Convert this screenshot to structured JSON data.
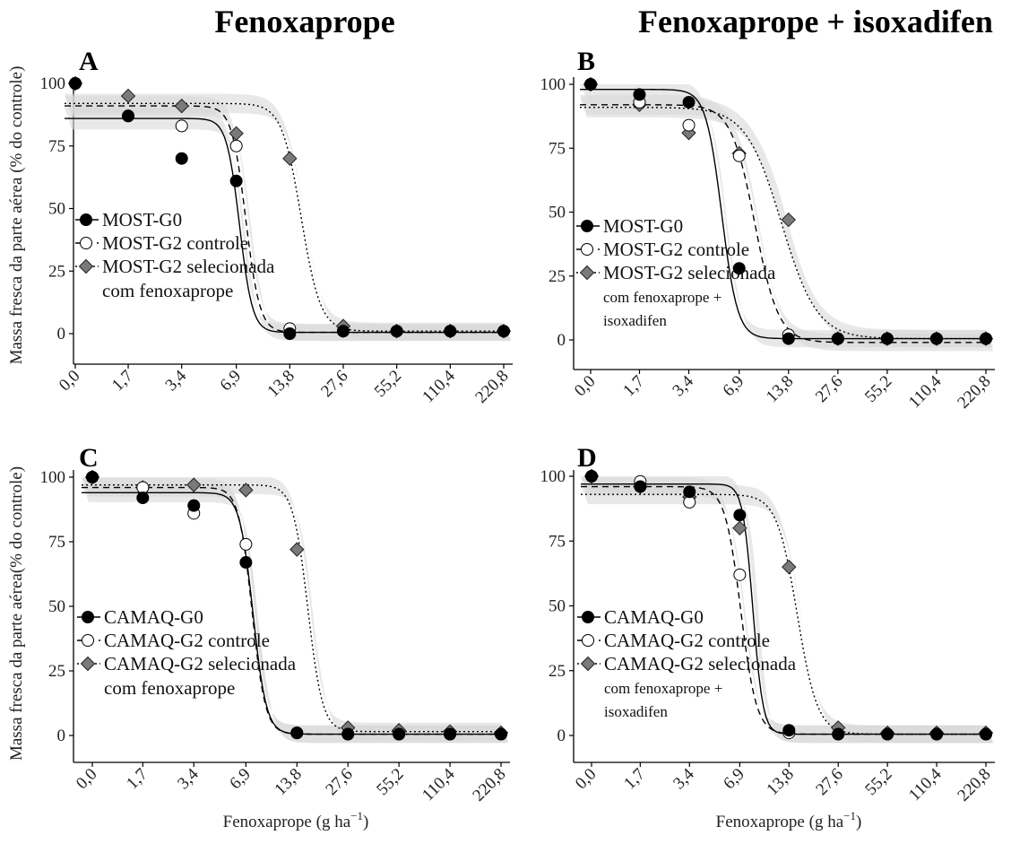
{
  "titles": {
    "left": "Fenoxaprope",
    "right": "Fenoxaprope + isoxadifen"
  },
  "y_axis_labels": {
    "top": "Massa fresca da parte aérea (% do controle)",
    "bottom": "Massa fresca da parte aérea(% do controle)"
  },
  "x_axis_label": {
    "main": "Fenoxaprope (g  ha",
    "sup": "−1",
    "close": ")"
  },
  "chart_data": [
    {
      "panel": "A",
      "type": "scatter",
      "x_ticks": [
        "0,0",
        "1,7",
        "3,4",
        "6,9",
        "13,8",
        "27,6",
        "55,2",
        "110,4",
        "220,8"
      ],
      "x": [
        0.0,
        1.7,
        3.4,
        6.9,
        13.8,
        27.6,
        55.2,
        110.4,
        220.8
      ],
      "y_ticks": [
        "0",
        "25",
        "50",
        "75",
        "100"
      ],
      "ylim": [
        0,
        100
      ],
      "grid": false,
      "legend_placement": "middle-left",
      "series": [
        {
          "name": "MOST-G0",
          "marker": "filled-circle",
          "line": "solid",
          "values": [
            100,
            87,
            70,
            61,
            0,
            1,
            1,
            1,
            1
          ],
          "fit": {
            "upper": 86,
            "lower": 0.5,
            "ed50": 7.2,
            "slope": 12
          }
        },
        {
          "name": "MOST-G2 controle",
          "marker": "open-circle",
          "line": "dashed",
          "values": [
            100,
            87,
            83,
            75,
            2,
            1,
            1,
            1,
            1
          ],
          "fit": {
            "upper": 91,
            "lower": 0.5,
            "ed50": 7.8,
            "slope": 11
          }
        },
        {
          "name": "MOST-G2 selecionada",
          "name_line2": "com fenoxaprope",
          "marker": "grey-diamond",
          "line": "dotted",
          "values": [
            100,
            95,
            91,
            80,
            70,
            3,
            1,
            1,
            1
          ],
          "fit": {
            "upper": 92,
            "lower": 1,
            "ed50": 16,
            "slope": 8
          }
        }
      ]
    },
    {
      "panel": "B",
      "type": "scatter",
      "x_ticks": [
        "0,0",
        "1,7",
        "3,4",
        "6,9",
        "13,8",
        "27,6",
        "55,2",
        "110,4",
        "220,8"
      ],
      "x": [
        0.0,
        1.7,
        3.4,
        6.9,
        13.8,
        27.6,
        55.2,
        110.4,
        220.8
      ],
      "y_ticks": [
        "0",
        "25",
        "50",
        "75",
        "100"
      ],
      "ylim": [
        0,
        100
      ],
      "grid": false,
      "legend_placement": "middle-left",
      "series": [
        {
          "name": "MOST-G0",
          "marker": "filled-circle",
          "line": "solid",
          "values": [
            100,
            96,
            93,
            28,
            0.5,
            0.5,
            0.5,
            0.5,
            0.5
          ],
          "fit": {
            "upper": 98,
            "lower": 0.5,
            "ed50": 5.4,
            "slope": 9
          }
        },
        {
          "name": "MOST-G2 controle",
          "marker": "open-circle",
          "line": "dashed",
          "values": [
            100,
            93,
            84,
            72,
            2,
            0.5,
            0.5,
            0.5,
            0.5
          ],
          "fit": {
            "upper": 92,
            "lower": -1,
            "ed50": 8.6,
            "slope": 6
          }
        },
        {
          "name": "MOST-G2 selecionada",
          "name_line2": "com fenoxaprope +",
          "name_line3": "isoxadifen",
          "marker": "grey-diamond",
          "line": "dotted",
          "values": [
            100,
            92,
            81,
            73,
            47,
            0.5,
            0.5,
            0.5,
            0.5
          ],
          "fit": {
            "upper": 91,
            "lower": 0.5,
            "ed50": 12.5,
            "slope": 4
          }
        }
      ]
    },
    {
      "panel": "C",
      "type": "scatter",
      "x_ticks": [
        "0,0",
        "1,7",
        "3,4",
        "6,9",
        "13,8",
        "27,6",
        "55,2",
        "110,4",
        "220,8"
      ],
      "x": [
        0.0,
        1.7,
        3.4,
        6.9,
        13.8,
        27.6,
        55.2,
        110.4,
        220.8
      ],
      "y_ticks": [
        "0",
        "25",
        "50",
        "75",
        "100"
      ],
      "ylim": [
        0,
        100
      ],
      "grid": false,
      "legend_placement": "middle-left",
      "series": [
        {
          "name": "CAMAQ-G0",
          "marker": "filled-circle",
          "line": "solid",
          "values": [
            100,
            92,
            89,
            67,
            1,
            0.5,
            0.5,
            0.5,
            0.5
          ],
          "fit": {
            "upper": 94,
            "lower": 0.5,
            "ed50": 7.6,
            "slope": 11
          }
        },
        {
          "name": "CAMAQ-G2 controle",
          "marker": "open-circle",
          "line": "dashed",
          "values": [
            100,
            96,
            86,
            74,
            1,
            0.5,
            0.5,
            0.5,
            0.5
          ],
          "fit": {
            "upper": 96,
            "lower": 0.5,
            "ed50": 7.5,
            "slope": 11
          }
        },
        {
          "name": "CAMAQ-G2 selecionada",
          "name_line2": "com fenoxaprope",
          "marker": "grey-diamond",
          "line": "dotted",
          "values": [
            100,
            96,
            97,
            95,
            72,
            3,
            2,
            1.5,
            1
          ],
          "fit": {
            "upper": 97,
            "lower": 1.5,
            "ed50": 16,
            "slope": 10
          }
        }
      ]
    },
    {
      "panel": "D",
      "type": "scatter",
      "x_ticks": [
        "0,0",
        "1,7",
        "3,4",
        "6,9",
        "13,8",
        "27,6",
        "55,2",
        "110,4",
        "220,8"
      ],
      "x": [
        0.0,
        1.7,
        3.4,
        6.9,
        13.8,
        27.6,
        55.2,
        110.4,
        220.8
      ],
      "y_ticks": [
        "0",
        "25",
        "50",
        "75",
        "100"
      ],
      "ylim": [
        0,
        100
      ],
      "grid": false,
      "legend_placement": "middle-left",
      "series": [
        {
          "name": "CAMAQ-G0",
          "marker": "filled-circle",
          "line": "solid",
          "values": [
            100,
            96,
            94,
            85,
            2,
            0.5,
            0.5,
            0.5,
            0.5
          ],
          "fit": {
            "upper": 97,
            "lower": 0.5,
            "ed50": 8.3,
            "slope": 14
          }
        },
        {
          "name": "CAMAQ-G2 controle",
          "marker": "open-circle",
          "line": "dashed",
          "values": [
            100,
            98,
            90,
            62,
            1,
            0.5,
            0.5,
            0.5,
            0.5
          ],
          "fit": {
            "upper": 96,
            "lower": 0.5,
            "ed50": 7.0,
            "slope": 9
          }
        },
        {
          "name": "CAMAQ-G2 selecionada",
          "name_line2": "com fenoxaprope +",
          "name_line3": "isoxadifen",
          "marker": "grey-diamond",
          "line": "dotted",
          "values": [
            100,
            96,
            92,
            80,
            65,
            3,
            1,
            1,
            1
          ],
          "fit": {
            "upper": 93,
            "lower": 0.5,
            "ed50": 15.5,
            "slope": 7
          }
        }
      ]
    }
  ],
  "colors": {
    "filled_marker": "#000000",
    "open_marker_fill": "#ffffff",
    "diamond_fill": "#7a7a7a",
    "ci_band": "#d9d9d9",
    "axis": "#000000"
  }
}
